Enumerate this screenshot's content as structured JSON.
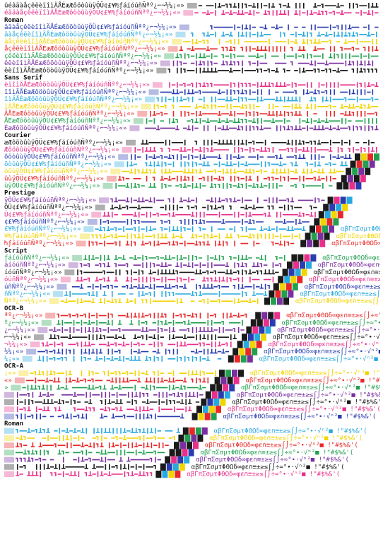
{
  "intro": [
    {
      "text": "ûéâäàåçêëèïîìÄÅÉæÆôöòûùÿÖÜ¢£¥₧ƒáíóúñÑªº¿⌐¬½¼¡«»"
    },
    {
      "text": "éâäàåçêëèïîìÄÅÉæÆôöòûùÿÖÜ¢£¥₧ƒáíóúñÑªº¿⌐¬½¼¡«»"
    }
  ],
  "sections": [
    {
      "label": "Roman",
      "lines": [
        {
          "text": "âäàåçêëèïîìÄÅÉæÆôöòûùÿÖÜ¢£¥₧ƒáíóúñÑªº¿⌐¬½¼¡«»"
        },
        {
          "text": "äàåçêëèïîìÄÅÉæÆôöòûùÿÖÜ¢£¥₧ƒáíóúñÑªº¿⌐¬½¼¡«»"
        },
        {
          "text": "àåçêëèïîìÄÅÉæÆôöòûùÿÖÜ¢£¥₧ƒáíóúñÑªº¿⌐¬½¼¡«»"
        },
        {
          "text": "åçêëèïîìÄÅÉæÆôöòûùÿÖÜ¢£¥₧ƒáíóúñÑªº¿⌐¬½¼¡«»"
        },
        {
          "text": "çêëèïîìÄÅÉæÆôöòûùÿÖÜ¢£¥₧ƒáíóúñÑªº¿⌐¬½¼¡«»"
        },
        {
          "text": "êëèïîìÄÅÉæÆôöòûùÿÖÜ¢£¥₧ƒáíóúñÑªº¿⌐¬½¼¡«»"
        },
        {
          "text": "ëèïîìÄÅÉæÆôöòûùÿÖÜ¢£¥₧ƒáíóúñÑªº¿⌐¬½¼¡«»"
        }
      ]
    },
    {
      "label": "Sans Serif",
      "lines": [
        {
          "text": "èïîìÄÅÉæÆôöòûùÿÖÜ¢£¥₧ƒáíóúñÑªº¿⌐¬½¼¡«»"
        },
        {
          "text": "ïîìÄÅÉæÆôöòûùÿÖÜ¢£¥₧ƒáíóúñÑªº¿⌐¬½¼¡«»"
        },
        {
          "text": "îìÄÅÉæÆôöòûùÿÖÜ¢£¥₧ƒáíóúñÑªº¿⌐¬½¼¡«»"
        },
        {
          "text": "ìÄÅÉæÆôöòûùÿÖÜ¢£¥₧ƒáíóúñÑªº¿⌐¬½¼¡«»"
        },
        {
          "text": "ÄÅÉæÆôöòûùÿÖÜ¢£¥₧ƒáíóúñÑªº¿⌐¬½¼¡«»"
        },
        {
          "text": "ÅÉæÆôöòûùÿÖÜ¢£¥₧ƒáíóúñÑªº¿⌐¬½¼¡«»"
        },
        {
          "text": "ÉæÆôöòûùÿÖÜ¢£¥₧ƒáíóúñÑªº¿⌐¬½¼¡«»"
        }
      ]
    },
    {
      "label": "Courier",
      "lines": [
        {
          "text": "æÆôöòûùÿÖÜ¢£¥₧ƒáíóúñÑªº¿⌐¬½¼¡«»"
        },
        {
          "text": "ÆôöòûùÿÖÜ¢£¥₧ƒáíóúñÑªº¿⌐¬½¼¡«»"
        },
        {
          "text": "ôöòûùÿÖÜ¢£¥₧ƒáíóúñÑªº¿⌐¬½¼¡«»"
        },
        {
          "text": "öòûùÿÖÜ¢£¥₧ƒáíóúñÑªº¿⌐¬½¼¡«»"
        },
        {
          "text": "òûùÿÖÜ¢£¥₧ƒáíóúñÑªº¿⌐¬½¼¡«»"
        },
        {
          "text": "ûùÿÖÜ¢£¥₧ƒáíóúñÑªº¿⌐¬½¼¡«»"
        },
        {
          "text": "ùÿÖÜ¢£¥₧ƒáíóúñÑªº¿⌐¬½¼¡«»"
        }
      ]
    },
    {
      "label": "Prestige",
      "lines": [
        {
          "text": "ÿÖÜ¢£¥₧ƒáíóúñÑªº¿⌐¬½¼¡«»",
          "tail": true
        },
        {
          "text": "ÖÜ¢£¥₧ƒáíóúñÑªº¿⌐¬½¼¡«»",
          "tail": true
        },
        {
          "text": "Ü¢£¥₧ƒáíóúñÑªº¿⌐¬½¼¡«»",
          "tail": true
        },
        {
          "text": "¢£¥₧ƒáíóúñÑªº¿⌐¬½¼¡«»",
          "tail": true
        },
        {
          "text": "£¥₧ƒáíóúñÑªº¿⌐¬½¼¡«»",
          "tail": true
        },
        {
          "text": "¥₧ƒáíóúñÑªº¿⌐¬½¼¡«»",
          "tail": true
        },
        {
          "text": "₧ƒáíóúñÑªº¿⌐¬½¼¡«»",
          "tail": true
        }
      ]
    },
    {
      "label": "Script",
      "lines": [
        {
          "text": "ƒáíóúñÑªº¿⌐¬½¼¡«»",
          "tail": true
        },
        {
          "text": "áíóúñÑªº¿⌐¬½¼¡«»",
          "tail": true
        },
        {
          "text": "íóúñÑªº¿⌐¬½¼¡«»",
          "tail": true
        },
        {
          "text": "óúñÑªº¿⌐¬½¼¡«»",
          "tail": true
        },
        {
          "text": "úñÑªº¿⌐¬½¼¡«»",
          "tail": true
        },
        {
          "text": "ñÑªº¿⌐¬½¼¡«»",
          "tail": true
        },
        {
          "text": "Ñªº¿⌐¬½¼¡«»",
          "tail": true
        }
      ]
    },
    {
      "label": "OCR-B",
      "lines": [
        {
          "text": "ªº¿⌐¬½¼¡«»",
          "tail": true
        },
        {
          "text": "º¿⌐¬½¼¡«»",
          "tail": true
        },
        {
          "text": "¿⌐¬½¼¡«»",
          "tail": true
        },
        {
          "text": "⌐¬½¼¡«»",
          "tail": true
        },
        {
          "text": "¬½¼¡«»",
          "tail": true
        },
        {
          "text": "½¼¡«»",
          "tail": true
        },
        {
          "text": "¼¡«»",
          "tail": true
        }
      ]
    },
    {
      "label": "OCR-A",
      "lines": [
        {
          "text": "¡«»",
          "tail": true
        },
        {
          "text": "«»",
          "tail": true
        },
        {
          "text": "»",
          "tail": true
        },
        {
          "tail": true
        },
        {
          "tail": true
        },
        {
          "tail": true
        },
        {
          "tail": true
        }
      ]
    },
    {
      "label": "Roman",
      "lines": [
        {
          "tail": true
        },
        {
          "tail": true
        },
        {
          "tail": true
        },
        {
          "tail": true
        },
        {
          "tail": true
        },
        {
          "tail": true
        },
        {
          "tail": true
        }
      ]
    }
  ],
  "symbols": "αβΓπΣσµτΦΘΩδ∞φε∩≡±≥≤⌠⌡÷≈°∙·√ⁿ²■ !\"#$%&'(",
  "palette": [
    "#1a1a1a",
    "#e8308a",
    "#2a3cb0",
    "#28a8e0",
    "#f2d400",
    "#e82828",
    "#22a050",
    "#7a2fa0"
  ]
}
